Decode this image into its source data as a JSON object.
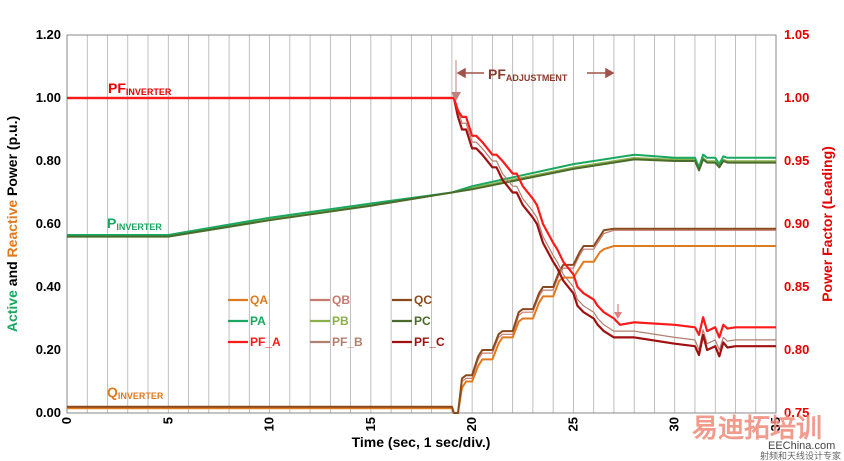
{
  "chart_data": {
    "type": "line",
    "xlabel": "Time (sec, 1 sec/div.)",
    "ylabel_left": {
      "prefix_1": "Active",
      "and": " and ",
      "prefix_2": "Reactive",
      "rest": " Power (p.u.)"
    },
    "ylabel_right": "Power Factor (Leading)",
    "xlim": [
      0,
      35
    ],
    "ylim_left": [
      0,
      1.2
    ],
    "ylim_right": [
      0.75,
      1.05
    ],
    "x_ticks": [
      "0",
      "5",
      "10",
      "15",
      "20",
      "25",
      "30",
      "35"
    ],
    "y_left_ticks": [
      "0.00",
      "0.20",
      "0.40",
      "0.60",
      "0.80",
      "1.00",
      "1.20"
    ],
    "y_right_ticks": [
      "0.75",
      "0.80",
      "0.85",
      "0.90",
      "0.95",
      "1.00",
      "1.05"
    ],
    "grid": "vertical",
    "legend_position": "center-left",
    "colors": {
      "QA": "#e07a1f",
      "QB": "#c77b70",
      "QC": "#8b4a1e",
      "PA": "#1aa860",
      "PB": "#8ab04a",
      "PC": "#4a6b2a",
      "PF_A": "#ff1a1a",
      "PF_B": "#b08070",
      "PF_C": "#a01010",
      "left_axis_green": "#1aa860",
      "left_axis_orange": "#e07a1f",
      "right_axis": "#e60000"
    },
    "series": [
      {
        "name": "QA",
        "axis": "left",
        "x": [
          0,
          19,
          19.1,
          19.3,
          19.5,
          19.7,
          20,
          20.3,
          20.5,
          21,
          21.3,
          21.5,
          22,
          22.3,
          22.5,
          23,
          23.3,
          23.5,
          24,
          24.3,
          24.5,
          25,
          25.3,
          25.5,
          26,
          26.3,
          26.5,
          27,
          35
        ],
        "y": [
          0.015,
          0.015,
          0,
          0,
          0.08,
          0.1,
          0.1,
          0.15,
          0.17,
          0.17,
          0.22,
          0.24,
          0.24,
          0.29,
          0.3,
          0.3,
          0.35,
          0.37,
          0.37,
          0.42,
          0.43,
          0.43,
          0.46,
          0.48,
          0.48,
          0.51,
          0.52,
          0.53,
          0.53
        ]
      },
      {
        "name": "QB",
        "axis": "left",
        "x": [
          0,
          19,
          19.1,
          19.3,
          19.5,
          19.7,
          20,
          20.3,
          20.5,
          21,
          21.3,
          21.5,
          22,
          22.3,
          22.5,
          23,
          23.3,
          23.5,
          24,
          24.3,
          24.5,
          25,
          25.3,
          25.5,
          26,
          26.3,
          26.5,
          27,
          35
        ],
        "y": [
          0.018,
          0.018,
          0,
          0,
          0.1,
          0.11,
          0.11,
          0.17,
          0.19,
          0.19,
          0.24,
          0.25,
          0.25,
          0.31,
          0.32,
          0.32,
          0.37,
          0.39,
          0.39,
          0.44,
          0.46,
          0.46,
          0.5,
          0.52,
          0.52,
          0.55,
          0.57,
          0.58,
          0.58
        ]
      },
      {
        "name": "QC",
        "axis": "left",
        "x": [
          0,
          19,
          19.1,
          19.3,
          19.5,
          19.7,
          20,
          20.3,
          20.5,
          21,
          21.3,
          21.5,
          22,
          22.3,
          22.5,
          23,
          23.3,
          23.5,
          24,
          24.3,
          24.5,
          25,
          25.3,
          25.5,
          26,
          26.3,
          26.5,
          27,
          35
        ],
        "y": [
          0.02,
          0.02,
          0,
          0,
          0.11,
          0.12,
          0.12,
          0.18,
          0.2,
          0.2,
          0.25,
          0.26,
          0.26,
          0.32,
          0.33,
          0.33,
          0.38,
          0.4,
          0.4,
          0.45,
          0.47,
          0.47,
          0.51,
          0.53,
          0.53,
          0.56,
          0.58,
          0.585,
          0.585
        ]
      },
      {
        "name": "PA",
        "axis": "left",
        "x": [
          0,
          5,
          10,
          15,
          19,
          20,
          25,
          28,
          30,
          31,
          31.2,
          31.4,
          31.6,
          32,
          32.2,
          32.4,
          32.6,
          33,
          35
        ],
        "y": [
          0.565,
          0.565,
          0.62,
          0.665,
          0.7,
          0.72,
          0.79,
          0.82,
          0.81,
          0.81,
          0.78,
          0.82,
          0.81,
          0.81,
          0.79,
          0.815,
          0.81,
          0.81,
          0.81
        ]
      },
      {
        "name": "PB",
        "axis": "left",
        "x": [
          0,
          5,
          10,
          15,
          19,
          20,
          25,
          28,
          30,
          31,
          31.2,
          31.4,
          31.6,
          32,
          32.2,
          32.4,
          32.6,
          33,
          35
        ],
        "y": [
          0.562,
          0.562,
          0.615,
          0.66,
          0.7,
          0.715,
          0.78,
          0.81,
          0.805,
          0.805,
          0.775,
          0.81,
          0.8,
          0.8,
          0.785,
          0.805,
          0.8,
          0.8,
          0.8
        ]
      },
      {
        "name": "PC",
        "axis": "left",
        "x": [
          0,
          5,
          10,
          15,
          19,
          20,
          25,
          28,
          30,
          31,
          31.2,
          31.4,
          31.6,
          32,
          32.2,
          32.4,
          32.6,
          33,
          35
        ],
        "y": [
          0.56,
          0.56,
          0.612,
          0.658,
          0.7,
          0.71,
          0.775,
          0.805,
          0.8,
          0.8,
          0.77,
          0.805,
          0.795,
          0.795,
          0.78,
          0.8,
          0.795,
          0.795,
          0.795
        ]
      },
      {
        "name": "PF_A",
        "axis": "right",
        "x": [
          0,
          19.1,
          19.3,
          19.5,
          19.7,
          20,
          20.2,
          20.5,
          21,
          21.2,
          21.5,
          22,
          22.2,
          22.5,
          23,
          23.2,
          23.5,
          24,
          24.2,
          24.5,
          25,
          25.2,
          25.5,
          26,
          26.2,
          26.5,
          27,
          27.3,
          28,
          30,
          31,
          31.2,
          31.4,
          31.6,
          32,
          32.2,
          32.4,
          32.6,
          33,
          35
        ],
        "y": [
          1.0,
          1.0,
          0.99,
          0.985,
          0.985,
          0.97,
          0.97,
          0.965,
          0.955,
          0.955,
          0.95,
          0.94,
          0.94,
          0.93,
          0.92,
          0.915,
          0.9,
          0.885,
          0.88,
          0.87,
          0.86,
          0.85,
          0.845,
          0.84,
          0.835,
          0.83,
          0.825,
          0.82,
          0.822,
          0.82,
          0.818,
          0.812,
          0.826,
          0.815,
          0.818,
          0.81,
          0.82,
          0.817,
          0.818,
          0.818
        ]
      },
      {
        "name": "PF_B",
        "axis": "right",
        "x": [
          0,
          19.1,
          19.3,
          19.5,
          19.7,
          20,
          20.2,
          20.5,
          21,
          21.2,
          21.5,
          22,
          22.2,
          22.5,
          23,
          23.2,
          23.5,
          24,
          24.2,
          24.5,
          25,
          25.2,
          25.5,
          26,
          26.2,
          26.5,
          27,
          28,
          30,
          31,
          31.2,
          31.4,
          31.6,
          32,
          32.2,
          32.4,
          32.6,
          33,
          35
        ],
        "y": [
          1.0,
          1.0,
          0.99,
          0.98,
          0.98,
          0.965,
          0.965,
          0.96,
          0.95,
          0.95,
          0.94,
          0.93,
          0.93,
          0.92,
          0.91,
          0.905,
          0.89,
          0.875,
          0.87,
          0.86,
          0.85,
          0.84,
          0.835,
          0.83,
          0.825,
          0.82,
          0.815,
          0.815,
          0.81,
          0.808,
          0.8,
          0.816,
          0.805,
          0.808,
          0.8,
          0.81,
          0.807,
          0.808,
          0.808
        ]
      },
      {
        "name": "PF_C",
        "axis": "right",
        "x": [
          0,
          19.1,
          19.3,
          19.5,
          19.7,
          20,
          20.2,
          20.5,
          21,
          21.2,
          21.5,
          22,
          22.2,
          22.5,
          23,
          23.2,
          23.5,
          24,
          24.2,
          24.5,
          25,
          25.2,
          25.5,
          26,
          26.2,
          26.5,
          27,
          28,
          30,
          31,
          31.2,
          31.4,
          31.6,
          32,
          32.2,
          32.4,
          32.6,
          33,
          35
        ],
        "y": [
          1.0,
          1.0,
          0.985,
          0.975,
          0.975,
          0.96,
          0.96,
          0.955,
          0.945,
          0.945,
          0.935,
          0.925,
          0.925,
          0.915,
          0.905,
          0.9,
          0.885,
          0.87,
          0.865,
          0.855,
          0.845,
          0.835,
          0.83,
          0.825,
          0.82,
          0.815,
          0.81,
          0.81,
          0.805,
          0.803,
          0.796,
          0.812,
          0.8,
          0.803,
          0.795,
          0.806,
          0.802,
          0.803,
          0.803
        ]
      }
    ],
    "legend": [
      [
        "QA",
        "QB",
        "QC"
      ],
      [
        "PA",
        "PB",
        "PC"
      ],
      [
        "PF_A",
        "PF_B",
        "PF_C"
      ]
    ],
    "annotations": {
      "pf_inverter": {
        "main": "PF",
        "sub": "INVERTER"
      },
      "p_inverter": {
        "main": "P",
        "sub": "INVERTER"
      },
      "q_inverter": {
        "main": "Q",
        "sub": "INVERTER"
      },
      "pf_adjustment": {
        "main": "PF",
        "sub": "ADJUSTMENT"
      }
    },
    "watermark": {
      "cn": "易迪拓培训",
      "cn2": "射频和天线设计专家",
      "url": "EEChina.com"
    }
  }
}
